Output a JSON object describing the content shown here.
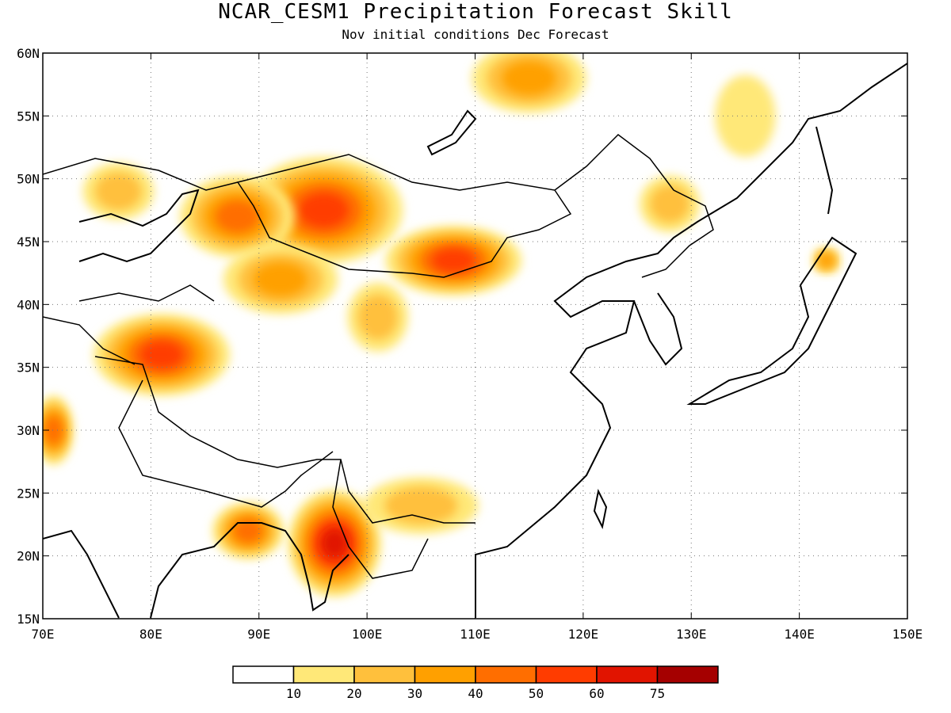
{
  "title": "NCAR_CESM1 Precipitation Forecast Skill",
  "subtitle": "Nov initial conditions  Dec Forecast",
  "map": {
    "lon_range": [
      70,
      150
    ],
    "lat_range": [
      15,
      60
    ],
    "lon_ticks": [
      "70E",
      "80E",
      "90E",
      "100E",
      "110E",
      "120E",
      "130E",
      "140E",
      "150E"
    ],
    "lat_ticks": [
      "15N",
      "20N",
      "25N",
      "30N",
      "35N",
      "40N",
      "45N",
      "50N",
      "55N",
      "60N"
    ],
    "gridlines": "dotted",
    "skill_regions": [
      {
        "lon": 96,
        "lat": 47.5,
        "rx": 7,
        "ry": 4,
        "level": 5
      },
      {
        "lon": 88,
        "lat": 47,
        "rx": 5,
        "ry": 3,
        "level": 4
      },
      {
        "lon": 108,
        "lat": 43.5,
        "rx": 6,
        "ry": 2.5,
        "level": 5
      },
      {
        "lon": 81,
        "lat": 36,
        "rx": 6,
        "ry": 3,
        "level": 5
      },
      {
        "lon": 97,
        "lat": 21,
        "rx": 4,
        "ry": 4,
        "level": 6
      },
      {
        "lon": 115,
        "lat": 58,
        "rx": 5,
        "ry": 2.5,
        "level": 3
      },
      {
        "lon": 89,
        "lat": 22,
        "rx": 3,
        "ry": 2,
        "level": 4
      },
      {
        "lon": 71,
        "lat": 30,
        "rx": 1.5,
        "ry": 2.5,
        "level": 4
      },
      {
        "lon": 128,
        "lat": 48,
        "rx": 2.5,
        "ry": 2,
        "level": 2
      },
      {
        "lon": 135,
        "lat": 55,
        "rx": 2.5,
        "ry": 3,
        "level": 1
      },
      {
        "lon": 92,
        "lat": 42,
        "rx": 5,
        "ry": 2.5,
        "level": 3
      },
      {
        "lon": 101,
        "lat": 39,
        "rx": 2.5,
        "ry": 2.5,
        "level": 2
      },
      {
        "lon": 105,
        "lat": 24,
        "rx": 5,
        "ry": 2,
        "level": 2
      },
      {
        "lon": 77,
        "lat": 49,
        "rx": 3,
        "ry": 2,
        "level": 2
      },
      {
        "lon": 142.5,
        "lat": 43.5,
        "rx": 1,
        "ry": 0.8,
        "level": 3
      }
    ]
  },
  "colorbar": {
    "colors": [
      "#ffffff",
      "#ffe878",
      "#ffc03c",
      "#ffa000",
      "#ff6e00",
      "#ff3c00",
      "#e11400",
      "#a50000"
    ],
    "labels": [
      "10",
      "20",
      "30",
      "40",
      "50",
      "60",
      "75"
    ]
  }
}
